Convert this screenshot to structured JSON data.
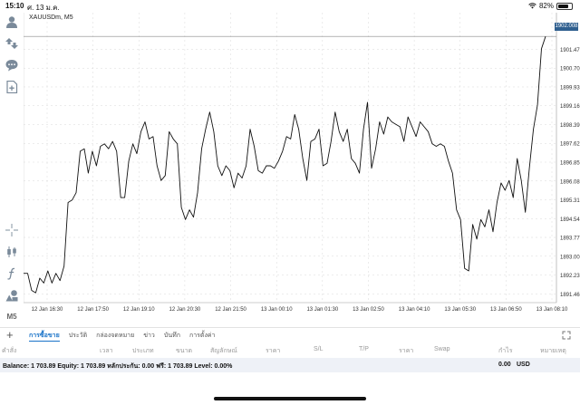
{
  "status_bar": {
    "time": "15:10",
    "date": "ศ. 13 ม.ค.",
    "battery": "82%",
    "battery_level": 0.82
  },
  "left_toolbar": {
    "icons": [
      "account-icon",
      "trade-arrows-icon",
      "chat-icon",
      "new-document-icon",
      "crosshair-icon",
      "candles-icon",
      "indicator-function-icon",
      "objects-icon"
    ],
    "timeframe": "M5"
  },
  "chart": {
    "symbol_label": "XAUUSDm, M5",
    "current_price": "1902.008",
    "colors": {
      "line": "#111111",
      "grid": "#d9d9d9",
      "price_tag": "#2f5f8f",
      "bid_line": "#8a8a8a"
    }
  },
  "chart_data": {
    "type": "line",
    "title": "",
    "xlabel": "",
    "ylabel": "",
    "ylim": [
      1891.1,
      1902.6
    ],
    "y_ticks": [
      "1901.470",
      "1900.700",
      "1899.930",
      "1899.160",
      "1898.390",
      "1897.620",
      "1896.850",
      "1896.080",
      "1895.310",
      "1894.540",
      "1893.770",
      "1893.000",
      "1892.230",
      "1891.460"
    ],
    "x_ticks": [
      "12 Jan 16:30",
      "12 Jan 17:50",
      "12 Jan 19:10",
      "12 Jan 20:30",
      "12 Jan 21:50",
      "13 Jan 00:10",
      "13 Jan 01:30",
      "13 Jan 02:50",
      "13 Jan 04:10",
      "13 Jan 05:30",
      "13 Jan 06:50",
      "13 Jan 08:10"
    ],
    "grid": true,
    "series": [
      {
        "values": [
          1892.3,
          1892.3,
          1891.6,
          1891.5,
          1892.1,
          1891.9,
          1892.4,
          1891.9,
          1892.3,
          1892.0,
          1892.6,
          1895.2,
          1895.3,
          1895.6,
          1897.3,
          1897.4,
          1896.4,
          1897.3,
          1896.7,
          1897.5,
          1897.6,
          1897.4,
          1897.7,
          1897.3,
          1895.4,
          1895.4,
          1896.9,
          1897.6,
          1897.2,
          1898.1,
          1898.5,
          1897.8,
          1897.9,
          1896.7,
          1896.1,
          1896.3,
          1898.1,
          1897.8,
          1897.6,
          1895.0,
          1894.5,
          1894.9,
          1894.6,
          1895.6,
          1897.4,
          1898.2,
          1898.9,
          1898.1,
          1896.7,
          1896.3,
          1896.7,
          1896.5,
          1895.8,
          1896.4,
          1896.2,
          1896.7,
          1898.2,
          1897.5,
          1896.5,
          1896.4,
          1896.7,
          1896.7,
          1896.6,
          1896.9,
          1897.3,
          1897.9,
          1897.8,
          1898.8,
          1898.2,
          1897.0,
          1896.1,
          1897.7,
          1897.8,
          1898.2,
          1896.7,
          1896.8,
          1897.7,
          1898.9,
          1898.1,
          1897.7,
          1898.2,
          1897.0,
          1896.8,
          1896.4,
          1898.2,
          1899.3,
          1896.6,
          1897.4,
          1898.5,
          1898.0,
          1898.7,
          1898.5,
          1898.4,
          1898.3,
          1897.7,
          1898.7,
          1898.3,
          1897.9,
          1898.5,
          1898.3,
          1898.1,
          1897.6,
          1897.5,
          1897.6,
          1897.5,
          1896.9,
          1896.4,
          1894.9,
          1894.5,
          1892.5,
          1892.4,
          1894.3,
          1893.7,
          1894.5,
          1894.2,
          1894.9,
          1894.0,
          1895.2,
          1896.0,
          1895.7,
          1896.1,
          1895.4,
          1897.0,
          1896.1,
          1894.8,
          1896.6,
          1898.2,
          1899.2,
          1901.5,
          1902.0
        ]
      }
    ]
  },
  "bottom_panel": {
    "tabs": [
      "การซื้อขาย",
      "ประวัติ",
      "กล่องจดหมาย",
      "ข่าว",
      "บันทึก",
      "การตั้งค่า"
    ],
    "active_tab": 0,
    "columns": [
      "คำสั่ง",
      "เวลา",
      "ประเภท",
      "ขนาด",
      "สัญลักษณ์",
      "ราคา",
      "S/L",
      "T/P",
      "ราคา",
      "Swap",
      "กำไร",
      "หมายเหตุ"
    ],
    "balance_text": "Balance: 1 703.89 Equity: 1 703.89 หลักประกัน: 0.00 ฟรี: 1 703.89 Level: 0.00%",
    "profit": "0.00",
    "currency": "USD"
  }
}
